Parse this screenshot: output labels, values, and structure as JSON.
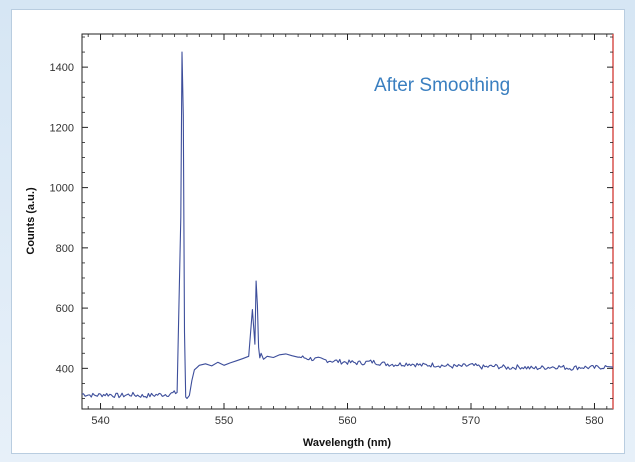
{
  "colors": {
    "line": "#3d4e9b",
    "annotation": "#3a7fc0",
    "right_border": "#d9534f"
  },
  "chart_data": {
    "type": "line",
    "title": "",
    "annotation": "After Smoothing",
    "xlabel": "Wavelength (nm)",
    "ylabel": "Counts (a.u.)",
    "xlim": [
      538.5,
      581.5
    ],
    "ylim": [
      265,
      1510
    ],
    "x_ticks": [
      540,
      550,
      560,
      570,
      580
    ],
    "y_ticks": [
      400,
      600,
      800,
      1000,
      1200,
      1400
    ],
    "grid": false,
    "series": [
      {
        "name": "",
        "x": [
          538.5,
          539.5,
          540.5,
          541.5,
          542.5,
          543.5,
          544.5,
          545.5,
          546.2,
          546.5,
          546.6,
          546.7,
          546.8,
          546.9,
          547.0,
          547.2,
          547.4,
          547.6,
          547.8,
          548.0,
          548.5,
          549.0,
          549.5,
          550.0,
          550.5,
          551.0,
          551.5,
          552.0,
          552.3,
          552.5,
          552.6,
          552.7,
          552.8,
          552.9,
          553.0,
          553.2,
          553.5,
          554.0,
          554.5,
          555.0,
          555.5,
          556.0,
          557.0,
          558.0,
          559.0,
          560.0,
          561.0,
          562.0,
          563.0,
          564.0,
          565.0,
          566.0,
          567.0,
          568.0,
          569.0,
          570.0,
          571.0,
          572.0,
          573.0,
          574.0,
          575.0,
          576.0,
          577.0,
          578.0,
          579.0,
          580.0,
          581.0,
          581.5
        ],
        "y": [
          315,
          310,
          314,
          309,
          313,
          308,
          312,
          314,
          320,
          900,
          1450,
          1240,
          520,
          305,
          300,
          310,
          360,
          395,
          402,
          410,
          415,
          408,
          420,
          410,
          418,
          425,
          432,
          440,
          595,
          480,
          690,
          610,
          470,
          435,
          450,
          430,
          440,
          436,
          445,
          448,
          442,
          438,
          432,
          428,
          424,
          420,
          418,
          422,
          415,
          413,
          416,
          410,
          412,
          408,
          406,
          410,
          404,
          407,
          402,
          405,
          400,
          403,
          406,
          401,
          404,
          402,
          406,
          404
        ]
      }
    ]
  }
}
